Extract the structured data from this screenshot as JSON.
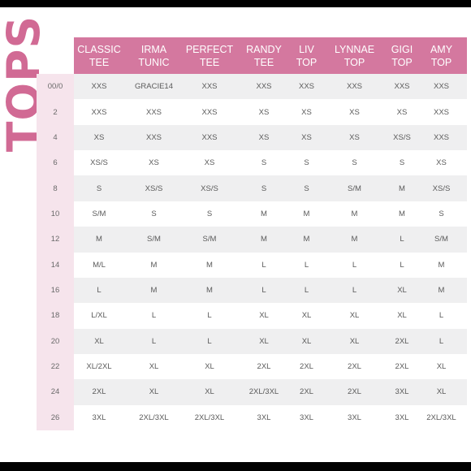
{
  "title": "TOPS",
  "columns": [
    {
      "line1": "CLASSIC",
      "line2": "TEE"
    },
    {
      "line1": "IRMA",
      "line2": "TUNIC"
    },
    {
      "line1": "PERFECT",
      "line2": "TEE"
    },
    {
      "line1": "RANDY",
      "line2": "TEE"
    },
    {
      "line1": "LIV",
      "line2": "TOP"
    },
    {
      "line1": "LYNNAE",
      "line2": "TOP"
    },
    {
      "line1": "GIGI",
      "line2": "TOP"
    },
    {
      "line1": "AMY",
      "line2": "TOP"
    }
  ],
  "rows": [
    {
      "size": "00/0",
      "cells": [
        "XXS",
        "GRACIE14",
        "XXS",
        "XXS",
        "XXS",
        "XXS",
        "XXS",
        "XXS"
      ]
    },
    {
      "size": "2",
      "cells": [
        "XXS",
        "XXS",
        "XXS",
        "XS",
        "XS",
        "XS",
        "XS",
        "XXS"
      ]
    },
    {
      "size": "4",
      "cells": [
        "XS",
        "XXS",
        "XXS",
        "XS",
        "XS",
        "XS",
        "XS/S",
        "XXS"
      ]
    },
    {
      "size": "6",
      "cells": [
        "XS/S",
        "XS",
        "XS",
        "S",
        "S",
        "S",
        "S",
        "XS"
      ]
    },
    {
      "size": "8",
      "cells": [
        "S",
        "XS/S",
        "XS/S",
        "S",
        "S",
        "S/M",
        "M",
        "XS/S"
      ]
    },
    {
      "size": "10",
      "cells": [
        "S/M",
        "S",
        "S",
        "M",
        "M",
        "M",
        "M",
        "S"
      ]
    },
    {
      "size": "12",
      "cells": [
        "M",
        "S/M",
        "S/M",
        "M",
        "M",
        "M",
        "L",
        "S/M"
      ]
    },
    {
      "size": "14",
      "cells": [
        "M/L",
        "M",
        "M",
        "L",
        "L",
        "L",
        "L",
        "M"
      ]
    },
    {
      "size": "16",
      "cells": [
        "L",
        "M",
        "M",
        "L",
        "L",
        "L",
        "XL",
        "M"
      ]
    },
    {
      "size": "18",
      "cells": [
        "L/XL",
        "L",
        "L",
        "XL",
        "XL",
        "XL",
        "XL",
        "L"
      ]
    },
    {
      "size": "20",
      "cells": [
        "XL",
        "L",
        "L",
        "XL",
        "XL",
        "XL",
        "2XL",
        "L"
      ]
    },
    {
      "size": "22",
      "cells": [
        "XL/2XL",
        "XL",
        "XL",
        "2XL",
        "2XL",
        "2XL",
        "2XL",
        "XL"
      ]
    },
    {
      "size": "24",
      "cells": [
        "2XL",
        "XL",
        "XL",
        "2XL/3XL",
        "2XL",
        "2XL",
        "3XL",
        "XL"
      ]
    },
    {
      "size": "26",
      "cells": [
        "3XL",
        "2XL/3XL",
        "2XL/3XL",
        "3XL",
        "3XL",
        "3XL",
        "3XL",
        "2XL/3XL"
      ]
    }
  ],
  "colors": {
    "header_bg": "#d4789f",
    "title_pink": "#d16a94",
    "row_label_bg": "#f6e4ec",
    "stripe_bg": "#efeff0"
  }
}
